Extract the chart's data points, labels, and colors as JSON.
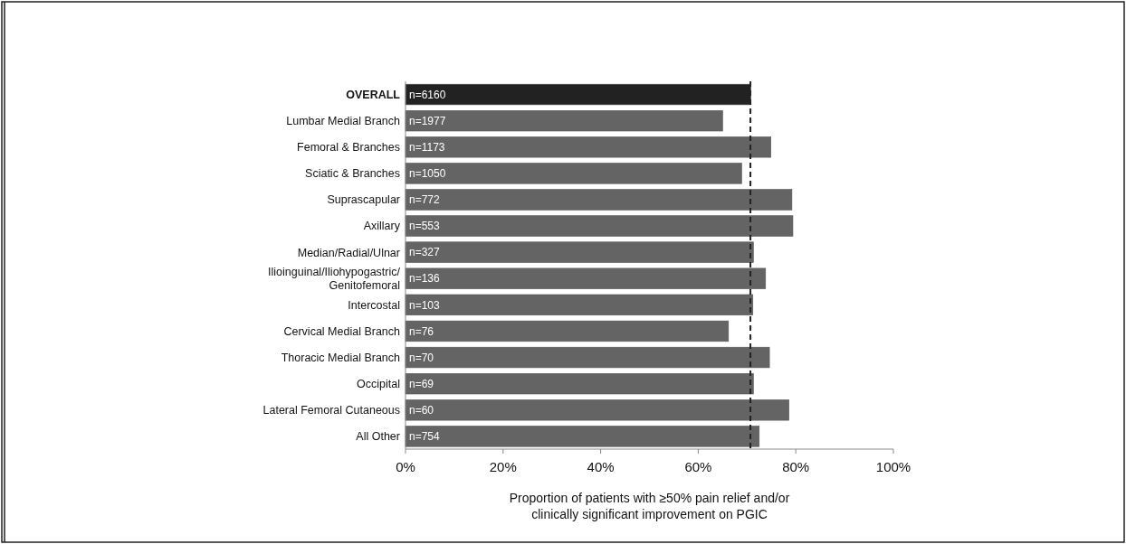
{
  "chart_data": {
    "type": "bar",
    "orientation": "horizontal",
    "xlabel": "Proportion of patients with ≥50% pain relief and/or\nclinically significant improvement on PGIC",
    "categories": [
      "OVERALL",
      "Lumbar Medial Branch",
      "Femoral & Branches",
      "Sciatic & Branches",
      "Suprascapular",
      "Axillary",
      "Median/Radial/Ulnar",
      "Ilioinguinal/Iliohypogastric/\nGenitofemoral",
      "Intercostal",
      "Cervical Medial Branch",
      "Thoracic Medial Branch",
      "Occipital",
      "Lateral Femoral Cutaneous",
      "All Other"
    ],
    "values": [
      70.8,
      65.0,
      74.9,
      68.9,
      79.2,
      79.4,
      71.3,
      73.8,
      71.2,
      66.2,
      74.6,
      71.3,
      78.6,
      72.5
    ],
    "colors": [
      "#222222",
      "#646464",
      "#646464",
      "#646464",
      "#646464",
      "#646464",
      "#646464",
      "#646464",
      "#646464",
      "#646464",
      "#646464",
      "#646464",
      "#646464",
      "#646464"
    ],
    "xlim": [
      0,
      100
    ],
    "xticks": [
      {
        "value": 0,
        "label": "0%"
      },
      {
        "value": 20,
        "label": "20%"
      },
      {
        "value": 40,
        "label": "40%"
      },
      {
        "value": 60,
        "label": "60%"
      },
      {
        "value": 80,
        "label": "80%"
      },
      {
        "value": 100,
        "label": "100%"
      }
    ],
    "ref_lines": [
      {
        "axis": "x",
        "value": 70.7,
        "label": null,
        "color": "#222222",
        "line_style": "dashed"
      }
    ],
    "annotations": [
      {
        "text": "n=6160",
        "y": "OVERALL"
      },
      {
        "text": "n=1977",
        "y": "Lumbar Medial Branch"
      },
      {
        "text": "n=1173",
        "y": "Femoral & Branches"
      },
      {
        "text": "n=1050",
        "y": "Sciatic & Branches"
      },
      {
        "text": "n=772",
        "y": "Suprascapular"
      },
      {
        "text": "n=553",
        "y": "Axillary"
      },
      {
        "text": "n=327",
        "y": "Median/Radial/Ulnar"
      },
      {
        "text": "n=136",
        "y": "Ilioinguinal/Iliohypogastric/\nGenitofemoral"
      },
      {
        "text": "n=103",
        "y": "Intercostal"
      },
      {
        "text": "n=76",
        "y": "Cervical Medial Branch"
      },
      {
        "text": "n=70",
        "y": "Thoracic Medial Branch"
      },
      {
        "text": "n=69",
        "y": "Occipital"
      },
      {
        "text": "n=60",
        "y": "Lateral Femoral Cutaneous"
      },
      {
        "text": "n=754",
        "y": "All Other"
      }
    ],
    "grid": false
  }
}
